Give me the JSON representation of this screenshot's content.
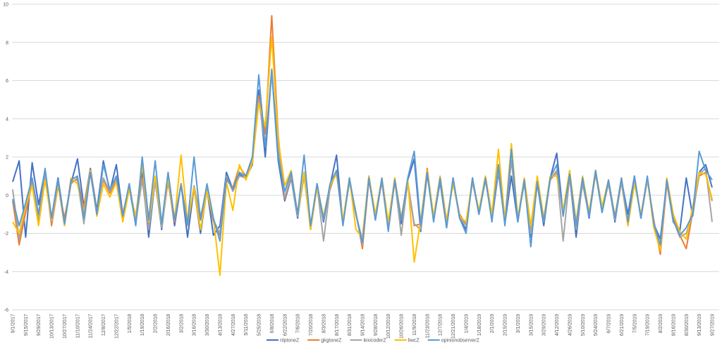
{
  "chart_data": {
    "type": "line",
    "title": "",
    "xlabel": "",
    "ylabel": "",
    "ylim": [
      -6,
      10
    ],
    "yticks": [
      -6,
      -4,
      -2,
      0,
      2,
      4,
      6,
      8,
      10
    ],
    "grid": true,
    "legend_position": "bottom",
    "x": [
      "9/1/2017",
      "9/8/2017",
      "9/15/2017",
      "9/22/2017",
      "9/29/2017",
      "10/6/2017",
      "10/13/2017",
      "10/20/2017",
      "10/27/2017",
      "11/3/2017",
      "11/10/2017",
      "11/17/2017",
      "11/24/2017",
      "12/1/2017",
      "12/8/2017",
      "12/15/2017",
      "12/22/2017",
      "12/29/2017",
      "1/5/2018",
      "1/12/2018",
      "1/19/2018",
      "1/26/2018",
      "2/2/2018",
      "2/9/2018",
      "2/16/2018",
      "2/23/2018",
      "3/2/2018",
      "3/9/2018",
      "3/16/2018",
      "3/23/2018",
      "3/30/2018",
      "4/6/2018",
      "4/13/2018",
      "4/20/2018",
      "4/27/2018",
      "5/4/2018",
      "5/11/2018",
      "5/18/2018",
      "5/25/2018",
      "6/1/2018",
      "6/8/2018",
      "6/15/2018",
      "6/22/2018",
      "6/29/2018",
      "7/6/2018",
      "7/13/2018",
      "7/20/2018",
      "7/27/2018",
      "8/3/2018",
      "8/10/2018",
      "8/17/2018",
      "8/24/2018",
      "8/31/2018",
      "9/7/2018",
      "9/14/2018",
      "9/21/2018",
      "9/28/2018",
      "10/5/2018",
      "10/12/2018",
      "10/19/2018",
      "10/26/2018",
      "11/2/2018",
      "11/9/2018",
      "11/16/2018",
      "11/23/2018",
      "11/30/2018",
      "12/7/2018",
      "12/14/2018",
      "12/21/2018",
      "12/28/2018",
      "1/4/2019",
      "1/11/2019",
      "1/18/2019",
      "1/25/2019",
      "2/1/2019",
      "2/8/2019",
      "2/15/2019",
      "2/22/2019",
      "3/1/2019",
      "3/8/2019",
      "3/15/2019",
      "3/22/2019",
      "3/29/2019",
      "4/5/2019",
      "4/12/2019",
      "4/19/2019",
      "4/26/2019",
      "5/3/2019",
      "5/10/2019",
      "5/17/2019",
      "5/24/2019",
      "5/31/2019",
      "6/7/2019",
      "6/14/2019",
      "6/21/2019",
      "6/28/2019",
      "7/5/2019",
      "7/12/2019",
      "7/19/2019",
      "7/26/2019",
      "8/2/2019",
      "8/9/2019",
      "8/16/2019",
      "8/23/2019",
      "8/30/2019",
      "9/6/2019",
      "9/13/2019",
      "9/20/2019",
      "9/27/2019"
    ],
    "xtick_labels": [
      "9/1/2017",
      "9/15/2017",
      "9/29/2017",
      "10/13/2017",
      "10/27/2017",
      "11/10/2017",
      "11/24/2017",
      "12/8/2017",
      "12/22/2017",
      "1/5/2018",
      "1/19/2018",
      "2/2/2018",
      "2/16/2018",
      "3/2/2018",
      "3/16/2018",
      "3/30/2018",
      "4/13/2018",
      "4/27/2018",
      "5/11/2018",
      "5/25/2018",
      "6/8/2018",
      "6/22/2018",
      "7/6/2018",
      "7/20/2018",
      "8/3/2018",
      "8/17/2018",
      "8/31/2018",
      "9/14/2018",
      "9/28/2018",
      "10/12/2018",
      "10/26/2018",
      "11/9/2018",
      "11/23/2018",
      "12/7/2018",
      "12/21/2018",
      "1/4/2019",
      "1/18/2019",
      "2/1/2019",
      "2/15/2019",
      "3/1/2019",
      "3/15/2019",
      "3/29/2019",
      "4/12/2019",
      "4/26/2019",
      "5/10/2019",
      "5/24/2019",
      "6/7/2019",
      "6/21/2019",
      "7/5/2019",
      "7/19/2019",
      "8/2/2019",
      "8/16/2019",
      "8/30/2019",
      "9/13/2019",
      "9/27/2019"
    ],
    "series": [
      {
        "name": "nlptoneZ",
        "color": "#4472C4",
        "values": [
          0.7,
          1.8,
          -2.2,
          1.7,
          -0.5,
          1.3,
          -1.2,
          0.9,
          -1.4,
          0.6,
          1.9,
          -0.6,
          1.4,
          -0.8,
          1.8,
          0.2,
          1.6,
          -1.0,
          0.4,
          -1.5,
          1.2,
          -2.2,
          0.8,
          -1.8,
          0.9,
          -1.6,
          0.6,
          -2.2,
          0.4,
          -2.0,
          0.3,
          -2.1,
          -1.6,
          1.2,
          0.3,
          1.1,
          0.9,
          1.6,
          5.5,
          2.0,
          6.5,
          1.8,
          -0.3,
          0.9,
          -1.2,
          1.2,
          -1.6,
          0.6,
          -1.4,
          0.5,
          2.1,
          -1.5,
          0.8,
          -1.0,
          -2.4,
          1.0,
          -1.3,
          0.8,
          -1.8,
          0.9,
          -1.5,
          0.8,
          1.9,
          -1.9,
          1.1,
          -1.3,
          0.7,
          -1.7,
          0.9,
          -1.2,
          -1.8,
          0.9,
          -1.0,
          0.9,
          -1.3,
          1.2,
          -1.5,
          1.0,
          -1.4,
          0.8,
          -2.2,
          0.6,
          -1.6,
          0.9,
          2.2,
          -1.0,
          1.0,
          -2.2,
          0.8,
          -1.2,
          1.2,
          -0.9,
          0.7,
          -1.4,
          0.8,
          -1.0,
          1.0,
          -1.2,
          0.9,
          -1.5,
          -2.3,
          0.7,
          -1.4,
          -1.9,
          0.9,
          -1.1,
          1.2,
          1.6,
          0.4
        ]
      },
      {
        "name": "gkgtoneZ",
        "color": "#ED7D31",
        "values": [
          -0.3,
          -2.6,
          -0.9,
          0.6,
          -1.4,
          1.2,
          -1.6,
          0.5,
          -1.2,
          0.6,
          0.9,
          -0.7,
          1.3,
          -0.9,
          0.8,
          0.1,
          0.8,
          -1.0,
          0.5,
          -1.3,
          0.9,
          -1.5,
          0.8,
          -1.6,
          0.7,
          -1.4,
          0.6,
          -1.5,
          0.4,
          -1.3,
          0.2,
          -1.4,
          -2.1,
          0.8,
          0.4,
          1.5,
          1.0,
          1.9,
          5.2,
          3.2,
          9.4,
          3.1,
          -0.2,
          1.0,
          -1.0,
          1.1,
          -1.8,
          0.5,
          -1.2,
          0.3,
          1.3,
          -1.4,
          0.7,
          -0.9,
          -2.8,
          0.8,
          -1.1,
          0.7,
          -1.7,
          0.7,
          -1.3,
          0.6,
          -1.6,
          -1.5,
          1.4,
          -1.2,
          0.8,
          -1.4,
          0.7,
          -1.0,
          -1.5,
          0.7,
          -0.9,
          0.8,
          -1.2,
          1.6,
          -1.4,
          2.4,
          -1.3,
          0.7,
          -1.8,
          0.7,
          -1.3,
          0.8,
          1.2,
          -0.8,
          0.9,
          -1.6,
          0.7,
          -1.0,
          1.1,
          -0.7,
          0.6,
          -1.2,
          0.7,
          -1.6,
          0.8,
          -1.1,
          0.8,
          -1.3,
          -3.1,
          0.6,
          -1.2,
          -2.1,
          -2.8,
          -0.9,
          1.0,
          1.2,
          -0.3
        ]
      },
      {
        "name": "lexicoderZ",
        "color": "#A5A5A5",
        "values": [
          0.3,
          -2.3,
          -0.5,
          0.8,
          -1.2,
          1.0,
          -1.4,
          0.6,
          -1.6,
          0.7,
          0.8,
          -1.5,
          1.2,
          -1.0,
          0.9,
          0.2,
          0.9,
          -1.2,
          0.6,
          -1.4,
          0.8,
          -1.8,
          0.7,
          -1.7,
          0.8,
          -1.2,
          0.5,
          -1.6,
          0.5,
          -1.1,
          0.3,
          -1.3,
          -2.0,
          1.0,
          0.2,
          1.0,
          0.9,
          1.8,
          5.0,
          2.6,
          6.4,
          2.4,
          -0.1,
          1.0,
          -1.1,
          1.0,
          -1.7,
          0.5,
          -2.4,
          0.4,
          1.2,
          -1.4,
          0.7,
          -1.0,
          -2.6,
          0.9,
          -1.2,
          0.8,
          -1.8,
          0.8,
          -2.1,
          0.7,
          -1.5,
          -1.8,
          1.2,
          -1.3,
          0.8,
          -1.5,
          0.8,
          -1.1,
          -1.6,
          0.8,
          -1.0,
          0.8,
          -1.2,
          1.3,
          -1.5,
          1.8,
          -1.2,
          0.6,
          -2.0,
          0.7,
          -1.4,
          0.8,
          1.3,
          -2.4,
          1.0,
          -1.8,
          0.6,
          -1.1,
          1.2,
          -0.8,
          0.6,
          -1.3,
          0.7,
          -1.5,
          0.9,
          -1.2,
          0.8,
          -1.4,
          -2.7,
          0.7,
          -1.3,
          -2.2,
          -2.0,
          -1.0,
          1.1,
          1.4,
          -1.4
        ]
      },
      {
        "name": "liwcZ",
        "color": "#FFC000",
        "values": [
          -1.4,
          -2.0,
          -0.6,
          0.5,
          -1.6,
          0.8,
          -1.3,
          0.6,
          -1.6,
          0.9,
          0.6,
          -0.9,
          1.3,
          -1.1,
          0.6,
          -0.1,
          0.7,
          -1.4,
          0.3,
          -1.1,
          1.6,
          -1.4,
          1.0,
          -1.5,
          0.9,
          -1.3,
          2.1,
          -1.4,
          0.4,
          -1.8,
          0.2,
          -1.2,
          -4.2,
          0.7,
          -0.8,
          1.6,
          0.8,
          1.7,
          4.8,
          3.6,
          8.3,
          2.9,
          0.5,
          1.3,
          -1.0,
          1.2,
          -1.8,
          0.4,
          -1.1,
          0.5,
          1.1,
          -1.3,
          0.9,
          -1.8,
          -2.2,
          1.0,
          -1.0,
          0.9,
          -1.4,
          0.9,
          -1.2,
          0.8,
          -3.5,
          -1.3,
          1.3,
          -1.1,
          1.0,
          -1.3,
          0.6,
          -1.1,
          -1.4,
          0.8,
          -0.8,
          1.0,
          -1.0,
          2.4,
          -1.3,
          2.7,
          -1.2,
          0.9,
          -1.6,
          1.0,
          -1.2,
          1.0,
          1.0,
          -0.8,
          1.3,
          -1.4,
          1.0,
          -0.9,
          1.3,
          -0.6,
          0.8,
          -1.1,
          0.9,
          -1.6,
          0.6,
          -1.0,
          0.9,
          -1.7,
          -2.9,
          0.9,
          -1.0,
          -1.9,
          -2.3,
          -0.6,
          1.2,
          1.1,
          -0.2
        ]
      },
      {
        "name": "opinionobserverZ",
        "color": "#5B9BD5",
        "values": [
          -0.2,
          -1.6,
          -0.4,
          0.9,
          -1.0,
          1.4,
          -1.2,
          0.8,
          -1.5,
          0.8,
          1.0,
          -1.2,
          1.2,
          -1.0,
          1.6,
          0.3,
          1.0,
          -1.1,
          0.6,
          -1.6,
          2.0,
          -1.3,
          1.8,
          -1.5,
          1.2,
          -1.3,
          0.5,
          -1.5,
          2.0,
          -1.3,
          0.6,
          -1.2,
          -2.4,
          0.9,
          0.3,
          1.2,
          1.0,
          2.0,
          6.3,
          2.5,
          6.6,
          2.0,
          0.2,
          1.2,
          -1.0,
          2.1,
          -1.6,
          0.6,
          -1.3,
          0.6,
          1.3,
          -1.6,
          0.9,
          -1.0,
          -2.5,
          0.9,
          -1.3,
          0.9,
          -1.9,
          0.8,
          -1.3,
          0.9,
          2.3,
          -1.6,
          1.2,
          -1.4,
          0.9,
          -1.7,
          0.9,
          -1.2,
          -2.0,
          0.9,
          -1.0,
          0.9,
          -1.4,
          1.6,
          -1.6,
          2.4,
          -1.4,
          0.8,
          -2.7,
          0.7,
          -1.4,
          0.9,
          1.6,
          -1.1,
          1.1,
          -1.6,
          0.9,
          -1.1,
          1.3,
          -0.9,
          0.8,
          -1.2,
          0.9,
          -1.4,
          1.0,
          -1.2,
          1.0,
          -1.5,
          -2.6,
          0.8,
          -1.3,
          -2.1,
          -1.7,
          -1.0,
          2.3,
          1.3,
          0.8
        ]
      }
    ]
  }
}
